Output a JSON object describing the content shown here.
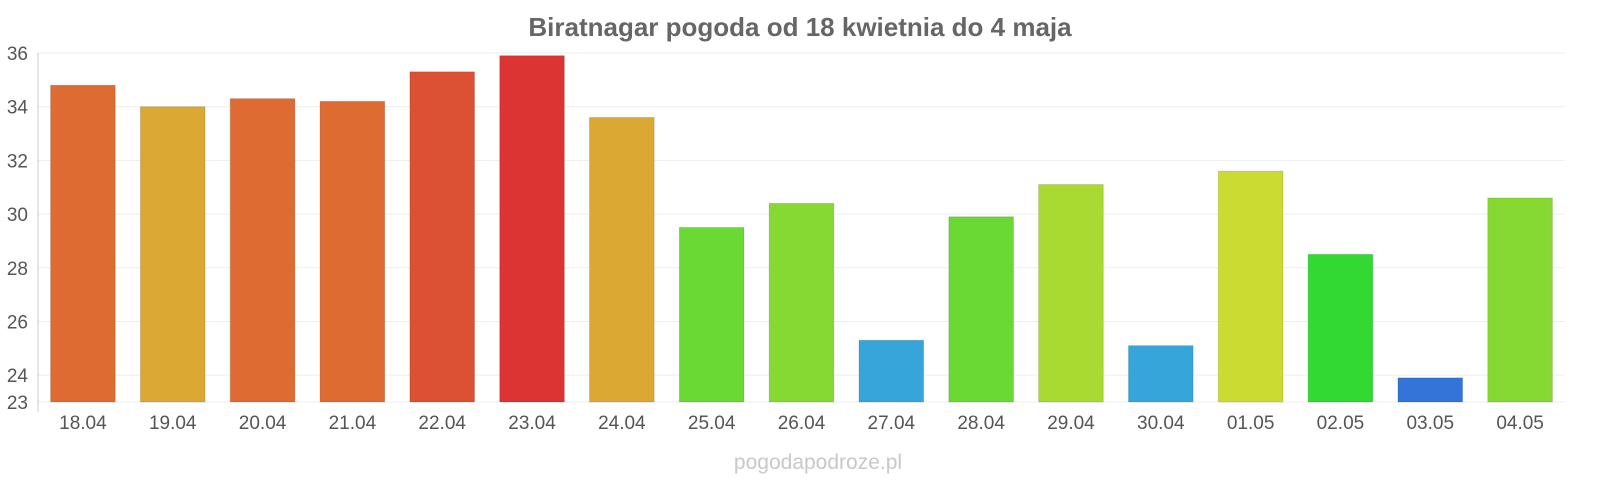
{
  "chart_data": {
    "type": "bar",
    "title": "Biratnagar pogoda od 18 kwietnia do 4 maja",
    "xlabel": "",
    "ylabel": "",
    "ylim": [
      23,
      36
    ],
    "yticks": [
      "36",
      "34",
      "32",
      "30",
      "28",
      "26",
      "24",
      "23"
    ],
    "grid": true,
    "categories": [
      "18.04",
      "19.04",
      "20.04",
      "21.04",
      "22.04",
      "23.04",
      "24.04",
      "25.04",
      "26.04",
      "27.04",
      "28.04",
      "29.04",
      "30.04",
      "01.05",
      "02.05",
      "03.05",
      "04.05"
    ],
    "values": [
      34.8,
      34.0,
      34.3,
      34.2,
      35.3,
      35.9,
      33.6,
      29.5,
      30.4,
      25.3,
      29.9,
      31.1,
      25.1,
      31.6,
      28.5,
      23.9,
      30.6
    ],
    "colors": [
      "#de6c32",
      "#dca834",
      "#de6c32",
      "#de6c32",
      "#dc5033",
      "#dc3433",
      "#dca834",
      "#6ad933",
      "#86d933",
      "#36a6da",
      "#6ad933",
      "#a8da32",
      "#36a6da",
      "#cbdb32",
      "#32d933",
      "#3374d9",
      "#86d933"
    ]
  },
  "watermark": "pogodapodroze.pl"
}
